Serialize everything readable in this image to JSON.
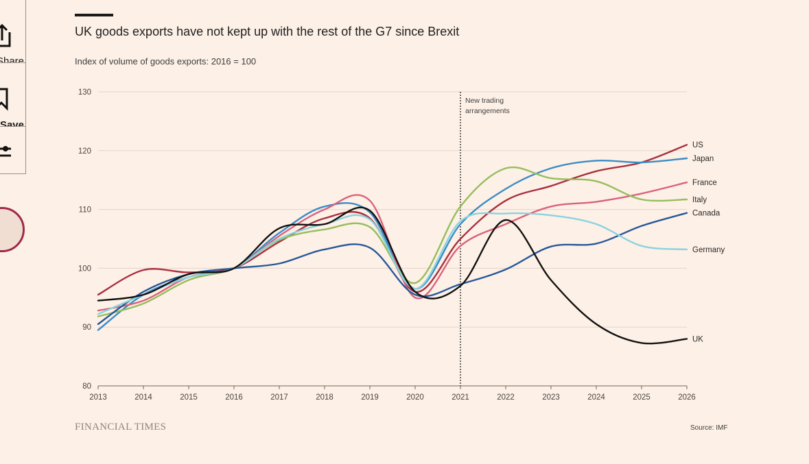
{
  "sidebar": {
    "share_label": "Share",
    "save_label": "Save"
  },
  "chart_data": {
    "type": "line",
    "title": "UK goods exports have not kept up with the rest of the G7 since Brexit",
    "subtitle": "Index of volume of goods exports: 2016 = 100",
    "x": [
      2013,
      2014,
      2015,
      2016,
      2017,
      2018,
      2019,
      2020,
      2021,
      2022,
      2023,
      2024,
      2025,
      2026
    ],
    "xlim": [
      2013,
      2026
    ],
    "ylim": [
      80,
      130
    ],
    "yticks": [
      80,
      90,
      100,
      110,
      120,
      130
    ],
    "grid": true,
    "legend": "direct labels at line ends",
    "annotation": {
      "x": 2021,
      "text": [
        "New trading",
        "arrangements"
      ]
    },
    "series": [
      {
        "name": "US",
        "color": "#a8303f",
        "values": [
          95.5,
          99.7,
          99.3,
          100,
          104.5,
          108.5,
          108.5,
          96.0,
          105.0,
          111.5,
          114.0,
          116.5,
          118.0,
          121.0
        ]
      },
      {
        "name": "Japan",
        "color": "#3a8cc6",
        "values": [
          89.5,
          95.5,
          98.5,
          100,
          106.0,
          110.5,
          109.5,
          96.5,
          107.5,
          113.5,
          117.0,
          118.3,
          118.0,
          118.7
        ]
      },
      {
        "name": "France",
        "color": "#d9627b",
        "values": [
          92.8,
          94.5,
          98.5,
          100,
          105.5,
          110.0,
          111.5,
          95.0,
          103.8,
          107.5,
          110.5,
          111.3,
          112.7,
          114.6
        ]
      },
      {
        "name": "Italy",
        "color": "#96bd5c",
        "values": [
          91.8,
          94.0,
          98.0,
          100,
          104.8,
          106.6,
          107.0,
          97.5,
          110.5,
          117.0,
          115.3,
          114.8,
          111.7,
          111.7
        ]
      },
      {
        "name": "Canada",
        "color": "#26579a",
        "values": [
          90.5,
          96.0,
          99.0,
          100,
          100.8,
          103.2,
          103.5,
          95.5,
          97.3,
          99.8,
          103.7,
          104.2,
          107.2,
          109.4
        ]
      },
      {
        "name": "Germany",
        "color": "#8ad3df",
        "values": [
          92.2,
          95.5,
          98.5,
          100,
          105.0,
          107.5,
          108.3,
          96.5,
          108.0,
          109.3,
          109.0,
          107.5,
          103.8,
          103.2
        ]
      },
      {
        "name": "UK",
        "color": "#111111",
        "values": [
          94.5,
          95.5,
          99.0,
          100,
          106.8,
          107.5,
          109.8,
          96.0,
          97.0,
          108.2,
          98.0,
          90.5,
          87.3,
          88.0
        ]
      }
    ]
  },
  "branding": "FINANCIAL TIMES",
  "source": "Source: IMF"
}
